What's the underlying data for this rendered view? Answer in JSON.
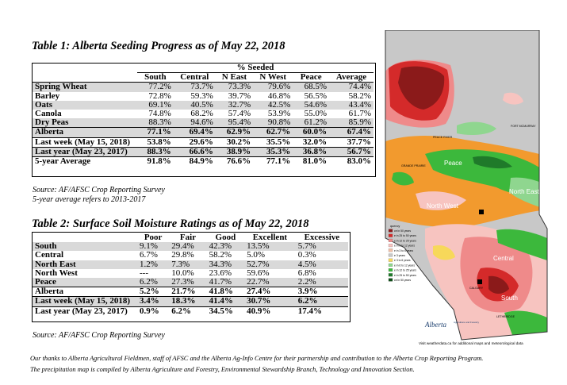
{
  "table1": {
    "title": "Table 1: Alberta Seeding Progress as of May 22, 2018",
    "group_header": "% Seeded",
    "columns": [
      "South",
      "Central",
      "N East",
      "N West",
      "Peace",
      "Average"
    ],
    "rows": [
      {
        "label": "Spring Wheat",
        "values": [
          "77.2%",
          "73.7%",
          "73.3%",
          "79.6%",
          "68.5%",
          "74.4%"
        ]
      },
      {
        "label": "Barley",
        "values": [
          "72.8%",
          "59.3%",
          "39.7%",
          "46.8%",
          "56.5%",
          "58.2%"
        ]
      },
      {
        "label": "Oats",
        "values": [
          "69.1%",
          "40.5%",
          "32.7%",
          "42.5%",
          "54.6%",
          "43.4%"
        ]
      },
      {
        "label": "Canola",
        "values": [
          "74.8%",
          "68.2%",
          "57.4%",
          "53.9%",
          "55.0%",
          "61.7%"
        ]
      },
      {
        "label": "Dry Peas",
        "values": [
          "88.3%",
          "94.6%",
          "95.4%",
          "90.8%",
          "61.2%",
          "85.9%"
        ]
      },
      {
        "label": "Alberta",
        "values": [
          "77.1%",
          "69.4%",
          "62.9%",
          "62.7%",
          "60.0%",
          "67.4%"
        ]
      },
      {
        "label": "Last week (May 15, 2018)",
        "values": [
          "53.8%",
          "29.6%",
          "30.2%",
          "35.5%",
          "32.0%",
          "37.7%"
        ]
      },
      {
        "label": "Last year (May 23, 2017)",
        "values": [
          "88.3%",
          "66.6%",
          "38.9%",
          "35.3%",
          "36.8%",
          "56.7%"
        ]
      },
      {
        "label": "5-year Average",
        "values": [
          "91.8%",
          "84.9%",
          "76.6%",
          "77.1%",
          "81.0%",
          "83.0%"
        ]
      }
    ],
    "source": "Source: AF/AFSC Crop Reporting Survey",
    "note": "5-year average refers to 2013-2017"
  },
  "table2": {
    "title": "Table 2: Surface Soil Moisture Ratings as of May 22, 2018",
    "columns": [
      "Poor",
      "Fair",
      "Good",
      "Excellent",
      "Excessive"
    ],
    "rows": [
      {
        "label": "South",
        "values": [
          "9.1%",
          "29.4%",
          "42.3%",
          "13.5%",
          "5.7%"
        ]
      },
      {
        "label": "Central",
        "values": [
          "6.7%",
          "29.8%",
          "58.2%",
          "5.0%",
          "0.3%"
        ]
      },
      {
        "label": "North East",
        "values": [
          "1.2%",
          "7.3%",
          "34.3%",
          "52.7%",
          "4.5%"
        ]
      },
      {
        "label": "North West",
        "values": [
          "---",
          "10.0%",
          "23.6%",
          "59.6%",
          "6.8%"
        ]
      },
      {
        "label": "Peace",
        "values": [
          "6.2%",
          "27.3%",
          "41.7%",
          "22.7%",
          "2.2%"
        ]
      },
      {
        "label": "Alberta",
        "values": [
          "5.2%",
          "21.7%",
          "41.8%",
          "27.4%",
          "3.9%"
        ]
      },
      {
        "label": "Last week (May 15, 2018)",
        "values": [
          "3.4%",
          "18.3%",
          "41.4%",
          "30.7%",
          "6.2%"
        ]
      },
      {
        "label": "Last year (May 23, 2017)",
        "values": [
          "0.9%",
          "6.2%",
          "34.5%",
          "40.9%",
          "17.4%"
        ]
      }
    ],
    "source": "Source: AF/AFSC Crop Reporting Survey"
  },
  "map": {
    "region_labels": [
      "Peace",
      "North East",
      "North West",
      "Central",
      "South"
    ],
    "town_labels": [
      "FORT MCMURRAY",
      "PEACE RIVER",
      "GRANDE PRAIRIE",
      "CALGARY",
      "LETHBRIDGE"
    ],
    "legend_title": "quency",
    "legend_items": [
      "ce in 50 years",
      "e in 25 to 50 years",
      "e in 12 to 25 years",
      "e in 6 to 12 years",
      "e in 3 to 6 years",
      "e 3 years",
      "e 3 to 6 years",
      "e in 6 to 12 years",
      "e in 12 to 25 years",
      "e in 25 to 50 years",
      "ce in 50 years"
    ],
    "brand": "Alberta",
    "brand_sub": "Agriculture and Forestry",
    "credit": "Visit weatherdata.ca for additional maps and meteorological data",
    "colors": {
      "dark_red": "#8b1a1a",
      "red": "#d42a2a",
      "pink": "#ef8a8a",
      "light_pink": "#f7c4c0",
      "orange": "#f29a2e",
      "yellow": "#f7d85a",
      "green": "#3cb83c",
      "light_green": "#8fd68f",
      "dark_green": "#1f7a2a",
      "grey": "#c8c8c8"
    }
  },
  "footer": {
    "line1": "Our thanks to Alberta Agricultural Fieldmen, staff of AFSC and the Alberta Ag-Info Centre for their partnership and contribution to the Alberta Crop Reporting Program.",
    "line2": "The precipitation map is compiled by Alberta Agriculture and Forestry, Environmental Stewardship Branch, Technology and Innovation Section."
  }
}
